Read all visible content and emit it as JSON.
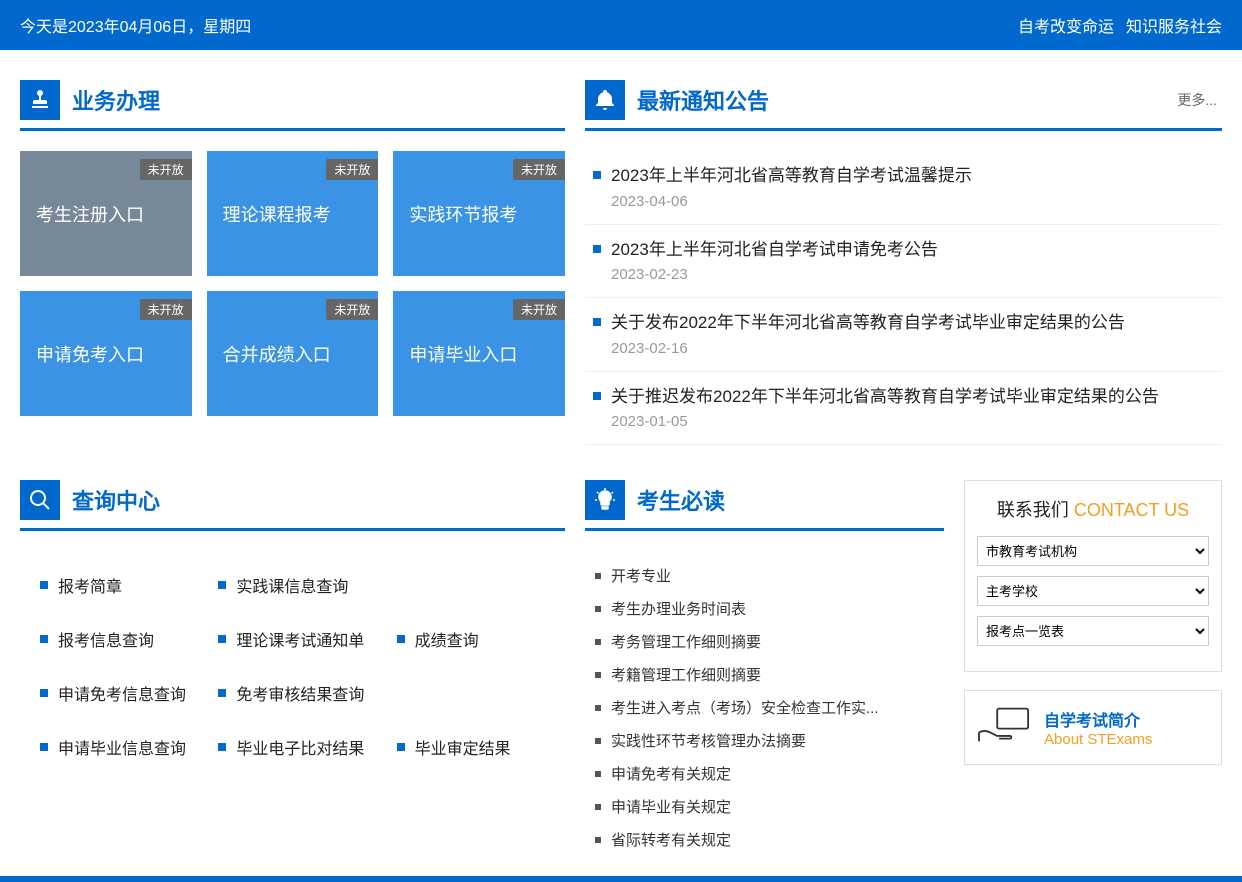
{
  "topbar": {
    "date_text": "今天是2023年04月06日，星期四",
    "slogan1": "自考改变命运",
    "slogan2": "知识服务社会"
  },
  "sections": {
    "services": {
      "title": "业务办理"
    },
    "notices": {
      "title": "最新通知公告",
      "more": "更多..."
    },
    "query": {
      "title": "查询中心"
    },
    "reading": {
      "title": "考生必读"
    }
  },
  "tiles": [
    {
      "label": "考生注册入口",
      "badge": "未开放",
      "active": true
    },
    {
      "label": "理论课程报考",
      "badge": "未开放",
      "active": false
    },
    {
      "label": "实践环节报考",
      "badge": "未开放",
      "active": false
    },
    {
      "label": "申请免考入口",
      "badge": "未开放",
      "active": false
    },
    {
      "label": "合并成绩入口",
      "badge": "未开放",
      "active": false
    },
    {
      "label": "申请毕业入口",
      "badge": "未开放",
      "active": false
    }
  ],
  "notices": [
    {
      "title": "2023年上半年河北省高等教育自学考试温馨提示",
      "date": "2023-04-06"
    },
    {
      "title": "2023年上半年河北省自学考试申请免考公告",
      "date": "2023-02-23"
    },
    {
      "title": "关于发布2022年下半年河北省高等教育自学考试毕业审定结果的公告",
      "date": "2023-02-16"
    },
    {
      "title": "关于推迟发布2022年下半年河北省高等教育自学考试毕业审定结果的公告",
      "date": "2023-01-05"
    }
  ],
  "queries": [
    "报考简章",
    "实践课信息查询",
    "",
    "报考信息查询",
    "理论课考试通知单",
    "成绩查询",
    "申请免考信息查询",
    "免考审核结果查询",
    "",
    "申请毕业信息查询",
    "毕业电子比对结果",
    "毕业审定结果"
  ],
  "readings": [
    "开考专业",
    "考生办理业务时间表",
    "考务管理工作细则摘要",
    "考籍管理工作细则摘要",
    "考生进入考点（考场）安全检查工作实...",
    "实践性环节考核管理办法摘要",
    "申请免考有关规定",
    "申请毕业有关规定",
    "省际转考有关规定"
  ],
  "contact": {
    "title_cn": "联系我们",
    "title_en": "CONTACT US",
    "selects": [
      {
        "placeholder": "市教育考试机构"
      },
      {
        "placeholder": "主考学校"
      },
      {
        "placeholder": "报考点一览表"
      }
    ]
  },
  "about": {
    "line1": "自学考试简介",
    "line2": "About STExams"
  },
  "colors": {
    "primary": "#0168CD",
    "tile": "#3A93E4",
    "tile_active": "#778899",
    "accent": "#f0a020"
  }
}
